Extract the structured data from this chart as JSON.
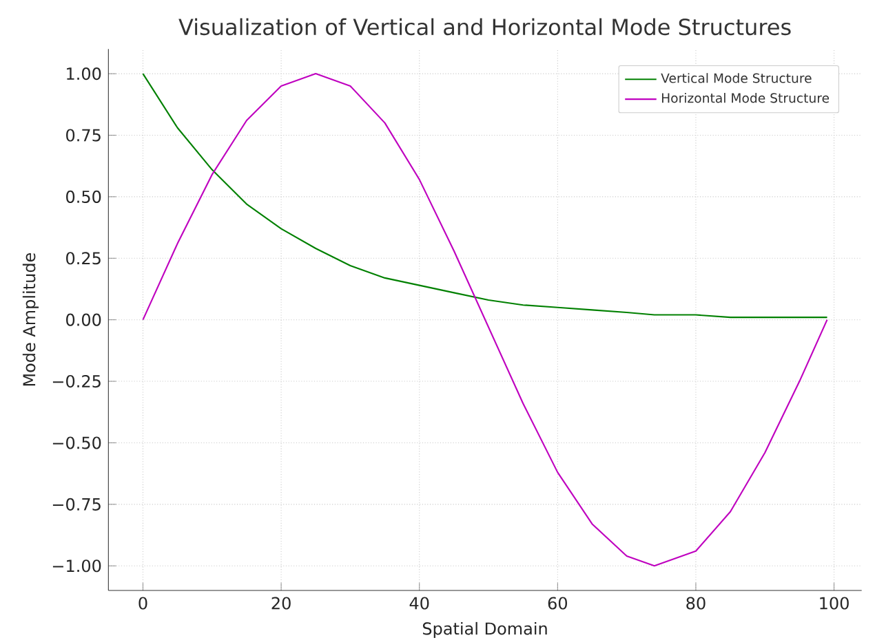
{
  "chart_data": {
    "type": "line",
    "title": "Visualization of Vertical and Horizontal Mode Structures",
    "xlabel": "Spatial Domain",
    "ylabel": "Mode Amplitude",
    "x": [
      0,
      5,
      10,
      15,
      20,
      25,
      30,
      35,
      40,
      45,
      50,
      55,
      60,
      65,
      70,
      74,
      80,
      85,
      90,
      95,
      99
    ],
    "series": [
      {
        "name": "Vertical Mode Structure",
        "color": "#008000",
        "values": [
          1.0,
          0.78,
          0.61,
          0.47,
          0.37,
          0.29,
          0.22,
          0.17,
          0.14,
          0.11,
          0.08,
          0.06,
          0.05,
          0.04,
          0.03,
          0.02,
          0.02,
          0.01,
          0.01,
          0.01,
          0.01
        ]
      },
      {
        "name": "Horizontal Mode Structure",
        "color": "#bf00bf",
        "values": [
          0.0,
          0.31,
          0.59,
          0.81,
          0.95,
          1.0,
          0.95,
          0.8,
          0.57,
          0.28,
          -0.03,
          -0.34,
          -0.62,
          -0.83,
          -0.96,
          -1.0,
          -0.94,
          -0.78,
          -0.54,
          -0.25,
          0.0
        ]
      }
    ],
    "xlim": [
      -5,
      104
    ],
    "ylim": [
      -1.1,
      1.1
    ],
    "xticks": [
      0,
      20,
      40,
      60,
      80,
      100
    ],
    "yticks": [
      {
        "value": -1.0,
        "label": "−1.00"
      },
      {
        "value": -0.75,
        "label": "−0.75"
      },
      {
        "value": -0.5,
        "label": "−0.50"
      },
      {
        "value": -0.25,
        "label": "−0.25"
      },
      {
        "value": 0.0,
        "label": "0.00"
      },
      {
        "value": 0.25,
        "label": "0.25"
      },
      {
        "value": 0.5,
        "label": "0.50"
      },
      {
        "value": 0.75,
        "label": "0.75"
      },
      {
        "value": 1.0,
        "label": "1.00"
      }
    ],
    "grid": true,
    "legend": "top right",
    "line_style": "solid",
    "marker": "none"
  }
}
